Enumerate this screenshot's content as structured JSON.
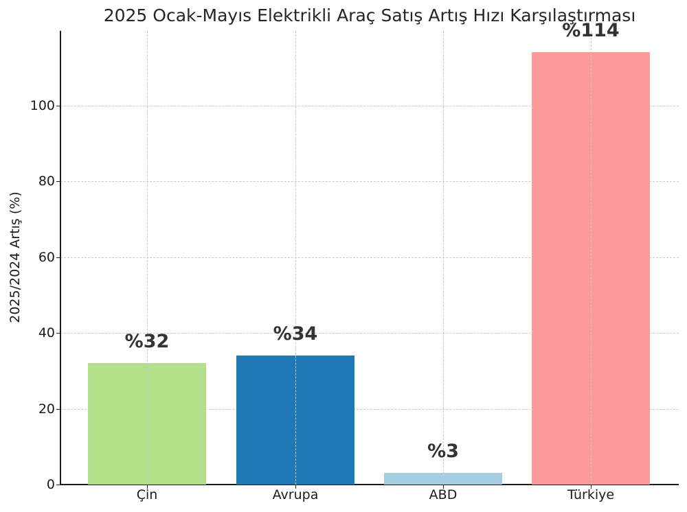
{
  "chart_data": {
    "type": "bar",
    "title": "2025 Ocak-Mayıs Elektrikli Araç Satış Artış Hızı Karşılaştırması",
    "xlabel": "",
    "ylabel": "2025/2024 Artış (%)",
    "categories": [
      "Çin",
      "Avrupa",
      "ABD",
      "Türkiye"
    ],
    "values": [
      32,
      34,
      3,
      114
    ],
    "data_labels": [
      "%32",
      "%34",
      "%3",
      "%114"
    ],
    "colors": [
      "#b2df8a",
      "#1f78b4",
      "#a6cee3",
      "#fb9a99"
    ],
    "ylim": [
      0,
      119.7
    ],
    "yticks": [
      0,
      20,
      40,
      60,
      80,
      100
    ],
    "grid": true,
    "legend": null
  }
}
